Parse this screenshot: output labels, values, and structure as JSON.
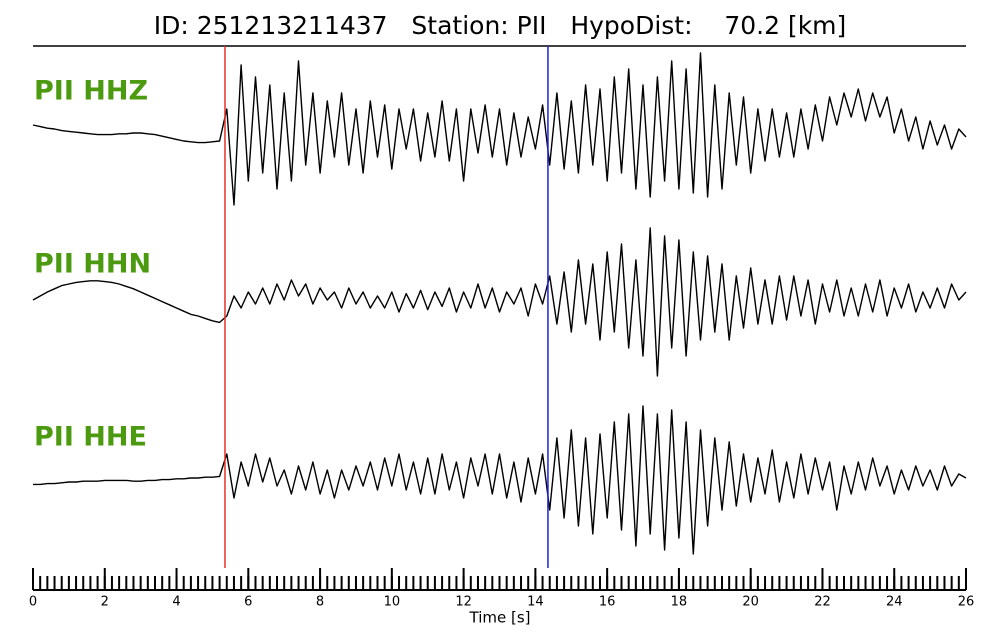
{
  "chart_data": {
    "type": "line",
    "title": "ID: 251213211437   Station: PII   HypoDist:    70.2 [km]",
    "xlabel": "Time [s]",
    "xlim": [
      0,
      26
    ],
    "xticks": [
      0,
      2,
      4,
      6,
      8,
      10,
      12,
      14,
      16,
      18,
      20,
      22,
      24,
      26
    ],
    "xminorticks": [
      0,
      0.2,
      0.4,
      0.6,
      0.8,
      1,
      1.2,
      1.4,
      1.6,
      1.8,
      2,
      2.2,
      2.4,
      2.6,
      2.8,
      3,
      3.2,
      3.4,
      3.6,
      3.8,
      4,
      4.2,
      4.4,
      4.6,
      4.8,
      5,
      5.2,
      5.4,
      5.6,
      5.8,
      6,
      6.2,
      6.4,
      6.6,
      6.8,
      7,
      7.2,
      7.4,
      7.6,
      7.8,
      8,
      8.2,
      8.4,
      8.6,
      8.8,
      9,
      9.2,
      9.4,
      9.6,
      9.8,
      10,
      10.2,
      10.4,
      10.6,
      10.8,
      11,
      11.2,
      11.4,
      11.6,
      11.8,
      12,
      12.2,
      12.4,
      12.6,
      12.8,
      13,
      13.2,
      13.4,
      13.6,
      13.8,
      14,
      14.2,
      14.4,
      14.6,
      14.8,
      15,
      15.2,
      15.4,
      15.6,
      15.8,
      16,
      16.2,
      16.4,
      16.6,
      16.8,
      17,
      17.2,
      17.4,
      17.6,
      17.8,
      18,
      18.2,
      18.4,
      18.6,
      18.8,
      19,
      19.2,
      19.4,
      19.6,
      19.8,
      20,
      20.2,
      20.4,
      20.6,
      20.8,
      21,
      21.2,
      21.4,
      21.6,
      21.8,
      22,
      22.2,
      22.4,
      22.6,
      22.8,
      23,
      23.2,
      23.4,
      23.6,
      23.8,
      24,
      24.2,
      24.4,
      24.6,
      24.8,
      25,
      25.2,
      25.4,
      25.6,
      25.8,
      26
    ],
    "ylim": [
      -1,
      1
    ],
    "label_color": "#4c9a10",
    "markers": [
      {
        "x": 5.35,
        "color": "#e8302a"
      },
      {
        "x": 14.35,
        "color": "#1f1fe8"
      }
    ],
    "x": [
      0,
      0.2,
      0.4,
      0.6,
      0.8,
      1,
      1.2,
      1.4,
      1.6,
      1.8,
      2,
      2.2,
      2.4,
      2.6,
      2.8,
      3,
      3.2,
      3.4,
      3.6,
      3.8,
      4,
      4.2,
      4.4,
      4.6,
      4.8,
      5,
      5.2,
      5.4,
      5.6,
      5.8,
      6,
      6.2,
      6.4,
      6.6,
      6.8,
      7,
      7.2,
      7.4,
      7.6,
      7.8,
      8,
      8.2,
      8.4,
      8.6,
      8.8,
      9,
      9.2,
      9.4,
      9.6,
      9.8,
      10,
      10.2,
      10.4,
      10.6,
      10.8,
      11,
      11.2,
      11.4,
      11.6,
      11.8,
      12,
      12.2,
      12.4,
      12.6,
      12.8,
      13,
      13.2,
      13.4,
      13.6,
      13.8,
      14,
      14.2,
      14.4,
      14.6,
      14.8,
      15,
      15.2,
      15.4,
      15.6,
      15.8,
      16,
      16.2,
      16.4,
      16.6,
      16.8,
      17,
      17.2,
      17.4,
      17.6,
      17.8,
      18,
      18.2,
      18.4,
      18.6,
      18.8,
      19,
      19.2,
      19.4,
      19.6,
      19.8,
      20,
      20.2,
      20.4,
      20.6,
      20.8,
      21,
      21.2,
      21.4,
      21.6,
      21.8,
      22,
      22.2,
      22.4,
      22.6,
      22.8,
      23,
      23.2,
      23.4,
      23.6,
      23.8,
      24,
      24.2,
      24.4,
      24.6,
      24.8,
      25,
      25.2,
      25.4,
      25.6,
      25.8,
      26
    ],
    "series": [
      {
        "name": "PII HHZ",
        "color": "#000000",
        "values": [
          0.1,
          0.08,
          0.06,
          0.05,
          0.03,
          0.02,
          0.01,
          0,
          -0.01,
          -0.02,
          -0.02,
          -0.02,
          -0.01,
          -0.01,
          0,
          0,
          -0.01,
          -0.02,
          -0.04,
          -0.06,
          -0.08,
          -0.1,
          -0.11,
          -0.12,
          -0.12,
          -0.11,
          -0.1,
          0.3,
          -0.9,
          0.85,
          -0.6,
          0.7,
          -0.5,
          0.6,
          -0.7,
          0.5,
          -0.6,
          0.9,
          -0.4,
          0.5,
          -0.5,
          0.4,
          -0.3,
          0.5,
          -0.4,
          0.3,
          -0.5,
          0.4,
          -0.3,
          0.35,
          -0.45,
          0.3,
          -0.2,
          0.3,
          -0.35,
          0.25,
          -0.3,
          0.4,
          -0.35,
          0.3,
          -0.6,
          0.3,
          -0.25,
          0.35,
          -0.3,
          0.3,
          -0.4,
          0.25,
          -0.3,
          0.2,
          -0.2,
          0.35,
          -0.4,
          0.5,
          -0.45,
          0.4,
          -0.5,
          0.6,
          -0.4,
          0.55,
          -0.6,
          0.7,
          -0.5,
          0.8,
          -0.7,
          0.6,
          -0.8,
          0.7,
          -0.6,
          0.9,
          -0.7,
          0.8,
          -0.75,
          1.0,
          -0.8,
          0.6,
          -0.7,
          0.5,
          -0.4,
          0.45,
          -0.5,
          0.3,
          -0.35,
          0.3,
          -0.3,
          0.25,
          -0.3,
          0.3,
          -0.2,
          0.35,
          -0.1,
          0.45,
          0.1,
          0.5,
          0.2,
          0.55,
          0.15,
          0.5,
          0.2,
          0.45,
          0.0,
          0.3,
          -0.1,
          0.2,
          -0.2,
          0.15,
          -0.15,
          0.1,
          -0.2,
          0.05,
          -0.05
        ]
      },
      {
        "name": "PII HHN",
        "color": "#000000",
        "values": [
          0,
          0.05,
          0.1,
          0.14,
          0.18,
          0.2,
          0.22,
          0.23,
          0.24,
          0.24,
          0.23,
          0.22,
          0.2,
          0.17,
          0.14,
          0.1,
          0.06,
          0.02,
          -0.02,
          -0.06,
          -0.1,
          -0.14,
          -0.18,
          -0.2,
          -0.23,
          -0.26,
          -0.28,
          -0.2,
          0.05,
          -0.1,
          0.1,
          -0.05,
          0.15,
          -0.05,
          0.2,
          0.0,
          0.25,
          0.05,
          0.2,
          -0.05,
          0.15,
          0.0,
          0.1,
          -0.1,
          0.15,
          -0.05,
          0.1,
          -0.1,
          0.05,
          -0.1,
          0.1,
          -0.15,
          0.08,
          -0.1,
          0.12,
          -0.12,
          0.1,
          -0.08,
          0.15,
          -0.15,
          0.1,
          -0.1,
          0.2,
          -0.1,
          0.15,
          -0.15,
          0.1,
          -0.05,
          0.15,
          -0.2,
          0.2,
          -0.05,
          0.3,
          -0.3,
          0.35,
          -0.4,
          0.5,
          -0.3,
          0.45,
          -0.5,
          0.6,
          -0.4,
          0.7,
          -0.6,
          0.5,
          -0.7,
          0.9,
          -0.95,
          0.8,
          -0.6,
          0.75,
          -0.7,
          0.6,
          -0.5,
          0.55,
          -0.4,
          0.45,
          -0.5,
          0.3,
          -0.35,
          0.4,
          -0.3,
          0.25,
          -0.3,
          0.3,
          -0.25,
          0.3,
          -0.2,
          0.25,
          -0.3,
          0.2,
          -0.15,
          0.25,
          -0.2,
          0.15,
          -0.2,
          0.2,
          -0.15,
          0.25,
          -0.2,
          0.15,
          -0.1,
          0.2,
          -0.15,
          0.1,
          -0.1,
          0.15,
          -0.1,
          0.2,
          0.0,
          0.1
        ]
      },
      {
        "name": "PII HHE",
        "color": "#000000",
        "values": [
          -0.08,
          -0.08,
          -0.07,
          -0.07,
          -0.06,
          -0.05,
          -0.05,
          -0.04,
          -0.04,
          -0.04,
          -0.03,
          -0.03,
          -0.03,
          -0.03,
          -0.04,
          -0.04,
          -0.03,
          -0.03,
          -0.02,
          -0.02,
          -0.01,
          -0.01,
          0,
          0,
          0.01,
          0.01,
          0.02,
          0.3,
          -0.25,
          0.2,
          -0.1,
          0.3,
          -0.05,
          0.25,
          -0.1,
          0.1,
          -0.2,
          0.15,
          -0.15,
          0.2,
          -0.2,
          0.1,
          -0.25,
          0.1,
          -0.15,
          0.15,
          -0.1,
          0.2,
          -0.15,
          0.25,
          -0.1,
          0.3,
          -0.15,
          0.2,
          -0.2,
          0.25,
          -0.2,
          0.3,
          -0.15,
          0.2,
          -0.25,
          0.25,
          -0.1,
          0.3,
          -0.2,
          0.3,
          -0.25,
          0.2,
          -0.3,
          0.25,
          -0.2,
          0.3,
          -0.4,
          0.5,
          -0.5,
          0.6,
          -0.6,
          0.5,
          -0.7,
          0.55,
          -0.5,
          0.7,
          -0.65,
          0.8,
          -0.85,
          0.9,
          -0.7,
          0.8,
          -0.9,
          0.85,
          -0.75,
          0.7,
          -0.95,
          0.6,
          -0.6,
          0.5,
          -0.4,
          0.45,
          -0.35,
          0.3,
          -0.3,
          0.25,
          -0.2,
          0.35,
          -0.3,
          0.2,
          -0.25,
          0.3,
          -0.2,
          0.25,
          -0.15,
          0.2,
          -0.4,
          0.15,
          -0.2,
          0.2,
          -0.15,
          0.25,
          -0.1,
          0.15,
          -0.2,
          0.1,
          -0.15,
          0.15,
          -0.1,
          0.1,
          -0.15,
          0.15,
          -0.1,
          0.05,
          0.0
        ]
      }
    ]
  }
}
